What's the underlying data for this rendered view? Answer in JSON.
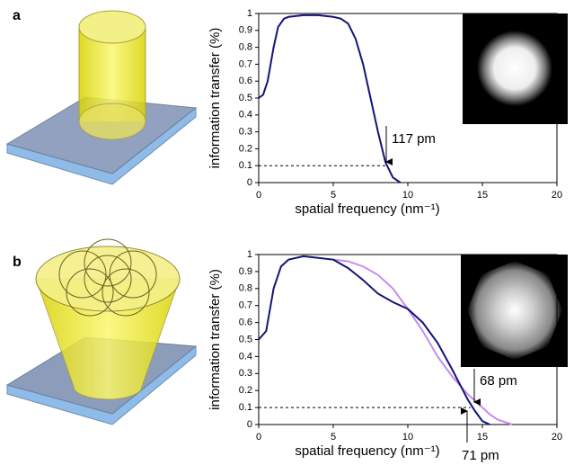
{
  "chart_data": [
    {
      "type": "line",
      "panel_label": "a",
      "ylabel": "information transfer (%)",
      "xlabel": "spatial frequency (nm⁻¹)",
      "x": [
        0,
        0.3,
        0.6,
        1,
        1.3,
        1.7,
        2,
        3,
        4,
        5,
        5.5,
        6,
        6.5,
        7,
        7.5,
        8,
        8.5,
        9,
        9.5
      ],
      "series": [
        {
          "color": "#141478",
          "values": [
            0.5,
            0.52,
            0.6,
            0.8,
            0.92,
            0.97,
            0.98,
            0.99,
            0.99,
            0.98,
            0.97,
            0.94,
            0.85,
            0.7,
            0.5,
            0.3,
            0.12,
            0.03,
            0
          ]
        }
      ],
      "xlim": [
        0,
        20
      ],
      "xticks": [
        0,
        5,
        10,
        15,
        20
      ],
      "ylim": [
        0,
        1
      ],
      "yticks": [
        0,
        0.1,
        0.2,
        0.3,
        0.4,
        0.5,
        0.6,
        0.7,
        0.8,
        0.9,
        1
      ],
      "reference_line": {
        "y": 0.1,
        "x_end": 8.5
      },
      "annotations": [
        {
          "text": "117 pm"
        }
      ]
    },
    {
      "type": "line",
      "panel_label": "b",
      "ylabel": "information transfer (%)",
      "xlabel": "spatial frequency (nm⁻¹)",
      "x": [
        0,
        0.5,
        1,
        1.5,
        2,
        3,
        4,
        5,
        6,
        7,
        8,
        9,
        10,
        11,
        12,
        13,
        14,
        14.5,
        15,
        15.5,
        16,
        17
      ],
      "series": [
        {
          "color": "#c58cf0",
          "values": [
            null,
            null,
            null,
            null,
            null,
            null,
            null,
            0.97,
            0.96,
            0.93,
            0.88,
            0.8,
            0.68,
            0.55,
            0.4,
            0.28,
            0.18,
            0.14,
            0.1,
            0.06,
            0.03,
            0
          ]
        },
        {
          "color": "#141478",
          "values": [
            0.5,
            0.55,
            0.8,
            0.93,
            0.97,
            0.99,
            0.98,
            0.97,
            0.92,
            0.85,
            0.77,
            0.72,
            0.68,
            0.6,
            0.48,
            0.32,
            0.15,
            0.08,
            0.02,
            0,
            null,
            null
          ]
        }
      ],
      "xlim": [
        0,
        20
      ],
      "xticks": [
        0,
        5,
        10,
        15,
        20
      ],
      "ylim": [
        0,
        1
      ],
      "yticks": [
        0,
        0.1,
        0.2,
        0.3,
        0.4,
        0.5,
        0.6,
        0.7,
        0.8,
        0.9,
        1
      ],
      "reference_line": {
        "y": 0.1,
        "x_end": 14.2
      },
      "annotations": [
        {
          "text": "68 pm"
        },
        {
          "text": "71 pm"
        }
      ]
    }
  ]
}
